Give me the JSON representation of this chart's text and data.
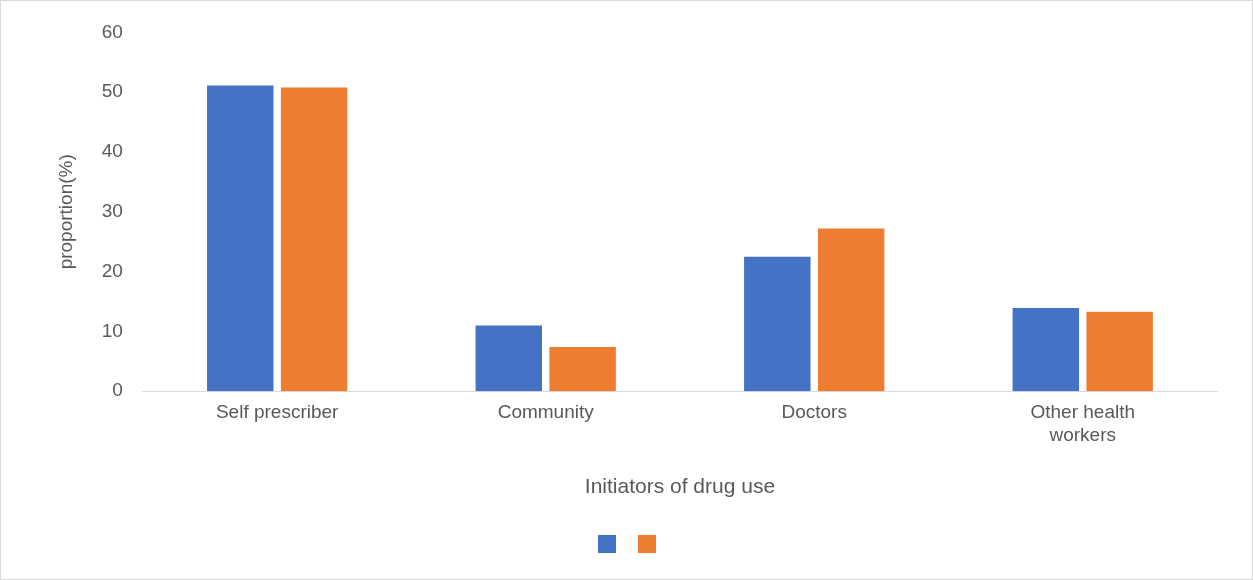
{
  "chart_data": {
    "type": "bar",
    "xlabel": "Initiators of drug use",
    "ylabel": "proportion(%)",
    "categories": [
      "Self prescriber",
      "Community",
      "Doctors",
      "Other health workers"
    ],
    "series": [
      {
        "color": "#4472c4",
        "values": [
          51.1,
          11.0,
          22.5,
          13.9
        ]
      },
      {
        "color": "#ed7d31",
        "values": [
          50.8,
          7.4,
          27.2,
          13.3
        ]
      }
    ],
    "ylim": [
      0,
      60
    ],
    "yticks": [
      0,
      10,
      20,
      30,
      40,
      50,
      60
    ],
    "grid": false
  }
}
